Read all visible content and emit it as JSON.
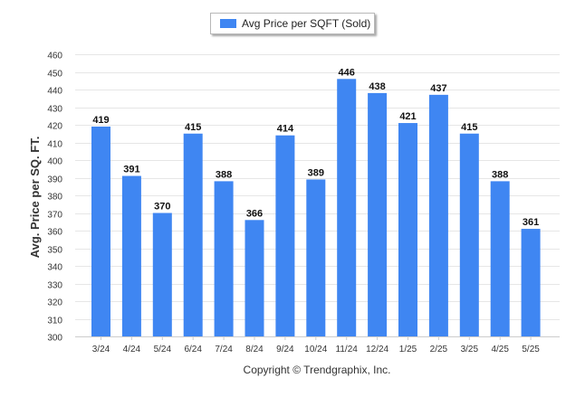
{
  "legend": {
    "label": "Avg Price per SQFT (Sold)"
  },
  "footer": {
    "copyright": "Copyright © Trendgraphix, Inc."
  },
  "colors": {
    "bar": "#3f86f2",
    "gridline": "#e6e6e6",
    "axis_text": "#333333",
    "label_text": "#111111"
  },
  "chart_data": {
    "type": "bar",
    "title": "",
    "xlabel": "",
    "ylabel": "Avg. Price per SQ. FT.",
    "categories": [
      "3/24",
      "4/24",
      "5/24",
      "6/24",
      "7/24",
      "8/24",
      "9/24",
      "10/24",
      "11/24",
      "12/24",
      "1/25",
      "2/25",
      "3/25",
      "4/25",
      "5/25"
    ],
    "series": [
      {
        "name": "Avg Price per SQFT (Sold)",
        "values": [
          419,
          391,
          370,
          415,
          388,
          366,
          414,
          389,
          446,
          438,
          421,
          437,
          415,
          388,
          361
        ]
      }
    ],
    "ylim": [
      300,
      460
    ],
    "yticks": [
      300,
      310,
      320,
      330,
      340,
      350,
      360,
      370,
      380,
      390,
      400,
      410,
      420,
      430,
      440,
      450,
      460
    ],
    "grid": true,
    "legend_position": "top-center",
    "data_labels": true
  }
}
